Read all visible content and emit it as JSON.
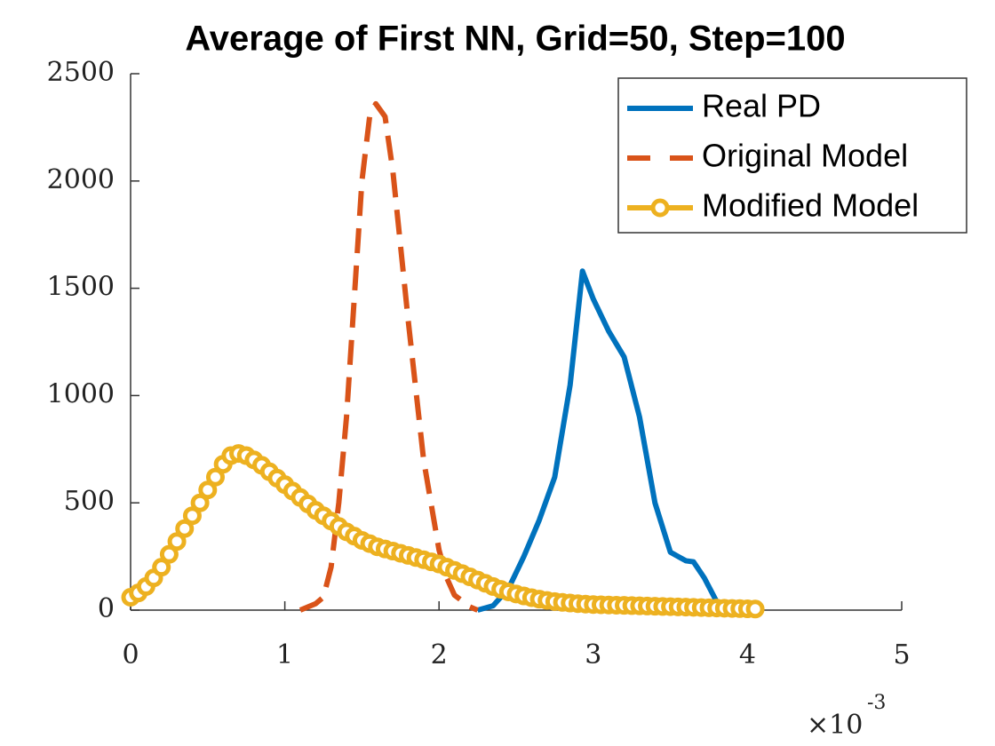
{
  "chart_data": {
    "type": "line",
    "title": "Average of First NN, Grid=50, Step=100",
    "x_multiplier": {
      "base": "×10",
      "exponent": "-3"
    },
    "xlim": [
      0,
      5
    ],
    "xticks": [
      0,
      1,
      2,
      3,
      4,
      5
    ],
    "ylim": [
      0,
      2500
    ],
    "yticks": [
      0,
      500,
      1000,
      1500,
      2000,
      2500
    ],
    "grid": false,
    "legend": "northeast",
    "series": [
      {
        "name": "Real PD",
        "color": "#0072BD",
        "linestyle": "solid",
        "x": [
          2.25,
          2.35,
          2.45,
          2.55,
          2.65,
          2.75,
          2.85,
          2.93,
          3.0,
          3.1,
          3.2,
          3.3,
          3.4,
          3.5,
          3.6,
          3.65,
          3.72,
          3.8,
          3.85
        ],
        "values": [
          0,
          20,
          100,
          250,
          420,
          620,
          1050,
          1580,
          1450,
          1300,
          1180,
          900,
          500,
          270,
          230,
          225,
          150,
          40,
          0
        ]
      },
      {
        "name": "Original Model",
        "color": "#D95319",
        "linestyle": "dashed",
        "x": [
          1.1,
          1.2,
          1.25,
          1.3,
          1.35,
          1.4,
          1.45,
          1.5,
          1.55,
          1.59,
          1.65,
          1.7,
          1.8,
          1.9,
          2.0,
          2.05,
          2.1,
          2.2,
          2.25
        ],
        "values": [
          0,
          30,
          60,
          200,
          500,
          900,
          1450,
          2000,
          2300,
          2360,
          2300,
          2050,
          1350,
          700,
          280,
          150,
          70,
          15,
          0
        ]
      },
      {
        "name": "Modified Model",
        "color": "#EDB120",
        "linestyle": "solid",
        "marker": "circle",
        "x": [
          0,
          0.05,
          0.1,
          0.15,
          0.2,
          0.25,
          0.3,
          0.35,
          0.4,
          0.45,
          0.5,
          0.55,
          0.6,
          0.65,
          0.7,
          0.75,
          0.8,
          0.85,
          0.9,
          0.95,
          1.0,
          1.05,
          1.1,
          1.15,
          1.2,
          1.25,
          1.3,
          1.35,
          1.4,
          1.45,
          1.5,
          1.55,
          1.6,
          1.65,
          1.7,
          1.75,
          1.8,
          1.85,
          1.9,
          1.95,
          2.0,
          2.05,
          2.1,
          2.15,
          2.2,
          2.25,
          2.3,
          2.35,
          2.4,
          2.45,
          2.5,
          2.55,
          2.6,
          2.65,
          2.7,
          2.75,
          2.8,
          2.85,
          2.9,
          2.95,
          3.0,
          3.05,
          3.1,
          3.15,
          3.2,
          3.25,
          3.3,
          3.35,
          3.4,
          3.45,
          3.5,
          3.55,
          3.6,
          3.65,
          3.7,
          3.75,
          3.8,
          3.85,
          3.9,
          3.95,
          4.0,
          4.05
        ],
        "values": [
          60,
          80,
          110,
          150,
          200,
          260,
          320,
          380,
          440,
          500,
          560,
          620,
          680,
          720,
          730,
          720,
          700,
          675,
          645,
          615,
          585,
          555,
          525,
          495,
          465,
          440,
          415,
          390,
          365,
          345,
          325,
          310,
          295,
          285,
          275,
          265,
          255,
          245,
          235,
          225,
          215,
          200,
          185,
          170,
          155,
          140,
          125,
          110,
          97,
          85,
          75,
          66,
          58,
          51,
          45,
          40,
          36,
          33,
          30,
          28,
          26,
          25,
          24,
          23,
          22,
          21,
          20,
          19,
          18,
          17,
          16,
          15,
          14,
          13,
          12,
          11,
          10,
          9,
          8,
          7,
          6,
          5
        ]
      }
    ]
  }
}
